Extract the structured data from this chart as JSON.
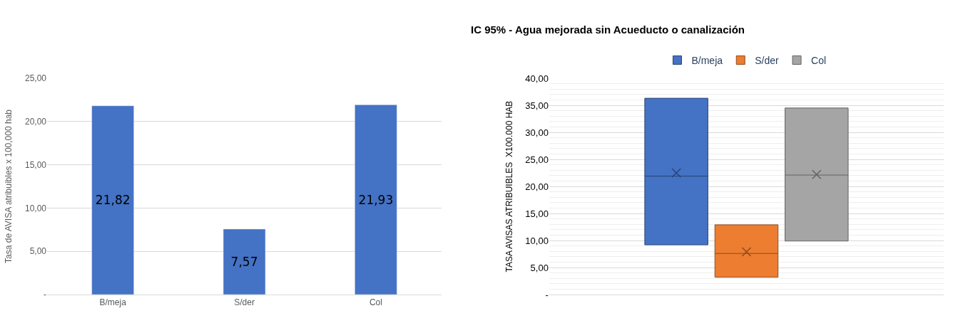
{
  "chart_data": [
    {
      "type": "bar",
      "ylabel": "Tasa de AVISA atribuibles x 100,000 hab",
      "categories": [
        "B/meja",
        "S/der",
        "Col"
      ],
      "series": [
        {
          "color": "#4472c4",
          "values": [
            21.82,
            7.57,
            21.93
          ]
        }
      ],
      "ylim": [
        0,
        25
      ],
      "yticks": [
        {
          "value": 0,
          "label": "-"
        },
        {
          "value": 5,
          "label": "5,00"
        },
        {
          "value": 10,
          "label": "10,00"
        },
        {
          "value": 15,
          "label": "15,00"
        },
        {
          "value": 20,
          "label": "20,00"
        },
        {
          "value": 25,
          "label": "25,00"
        }
      ],
      "grid": "y",
      "value_labels": [
        "21,82",
        "7,57",
        "21,93"
      ]
    },
    {
      "type": "box",
      "title": "IC 95% - Agua mejorada sin Acueducto o canalización",
      "ylabel": "TASA AVISAS ATRIBUIBLES  X100.000 HAB",
      "categories": [
        null
      ],
      "series": [
        {
          "name": "B/meja",
          "color": "#4472c4",
          "boxes": [
            {
              "q1": 9.2,
              "median": 21.9,
              "q3": 36.3,
              "mean": 22.5
            }
          ]
        },
        {
          "name": "S/der",
          "color": "#ed7d31",
          "boxes": [
            {
              "q1": 3.2,
              "median": 7.6,
              "q3": 12.9,
              "mean": 7.9
            }
          ]
        },
        {
          "name": "Col",
          "color": "#a5a5a5",
          "boxes": [
            {
              "q1": 9.9,
              "median": 22.1,
              "q3": 34.5,
              "mean": 22.2
            }
          ]
        }
      ],
      "ylim": [
        0,
        40
      ],
      "yticks": [
        {
          "value": 0,
          "label": "-"
        },
        {
          "value": 5,
          "label": "5,00"
        },
        {
          "value": 10,
          "label": "10,00"
        },
        {
          "value": 15,
          "label": "15,00"
        },
        {
          "value": 20,
          "label": "20,00"
        },
        {
          "value": 25,
          "label": "25,00"
        },
        {
          "value": 30,
          "label": "30,00"
        },
        {
          "value": 35,
          "label": "35,00"
        },
        {
          "value": 40,
          "label": "40,00"
        }
      ],
      "grid": true,
      "legend": "top"
    }
  ]
}
